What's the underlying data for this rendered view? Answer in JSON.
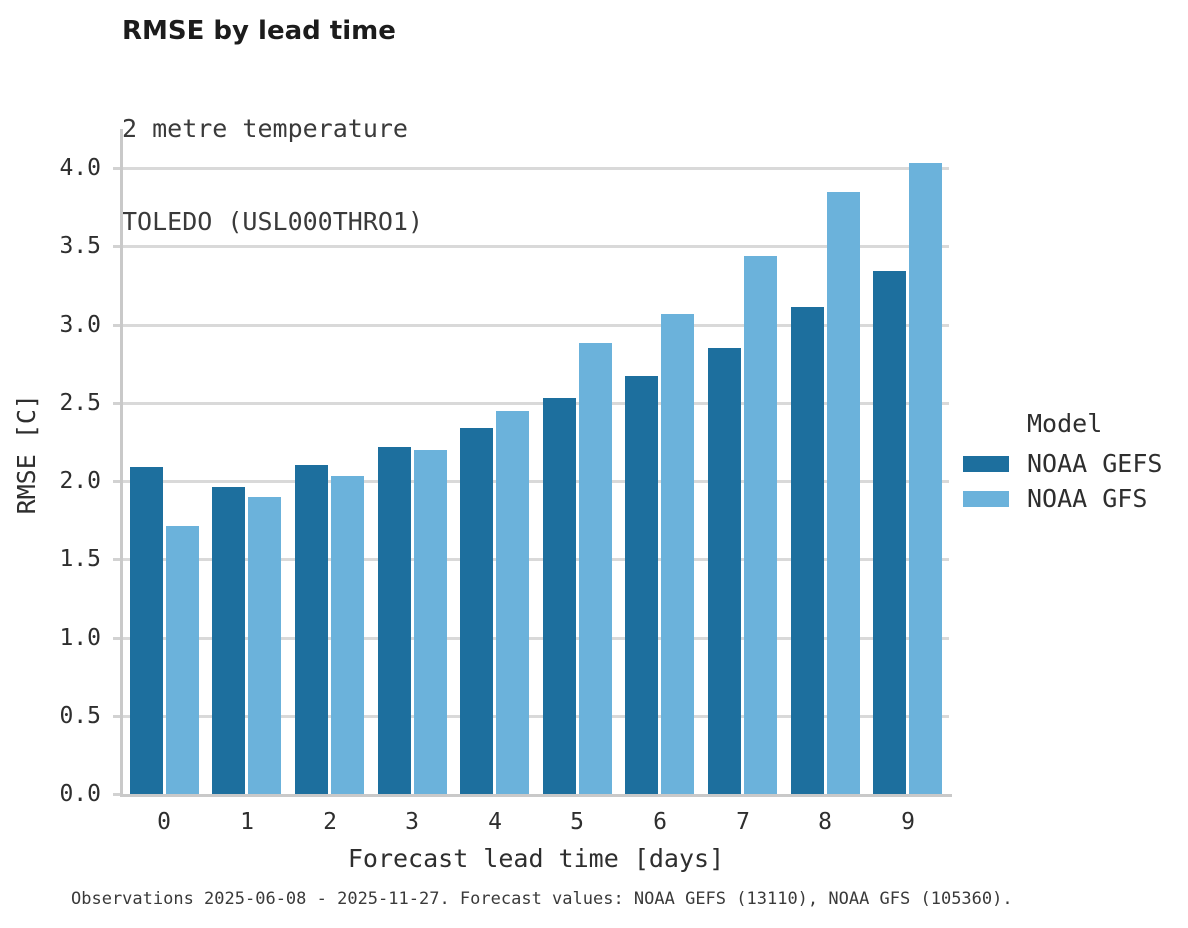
{
  "header": {
    "title": "RMSE by lead time",
    "subtitle_line1": "2 metre temperature",
    "subtitle_line2": "TOLEDO (USL000THRO1)"
  },
  "legend": {
    "title": "Model"
  },
  "footer": {
    "text": "Observations 2025-06-08 - 2025-11-27. Forecast values: NOAA GEFS (13110), NOAA GFS (105360)."
  },
  "colors": {
    "bar_dark": "#1d6f9e",
    "bar_light": "#6bb2db",
    "gridline": "#d9d9d9",
    "axis": "#c9c9c9",
    "text": "#2e2e2e",
    "subtext": "#3a3a3a"
  },
  "chart_data": {
    "type": "bar",
    "title": "RMSE by lead time",
    "subtitle": "2 metre temperature — TOLEDO (USL000THRO1)",
    "xlabel": "Forecast lead time [days]",
    "ylabel": "RMSE [C]",
    "categories": [
      "0",
      "1",
      "2",
      "3",
      "4",
      "5",
      "6",
      "7",
      "8",
      "9"
    ],
    "series": [
      {
        "name": "NOAA GEFS",
        "color": "#1d6f9e",
        "values": [
          2.09,
          1.96,
          2.1,
          2.22,
          2.34,
          2.53,
          2.67,
          2.85,
          3.11,
          3.34
        ]
      },
      {
        "name": "NOAA GFS",
        "color": "#6bb2db",
        "values": [
          1.71,
          1.9,
          2.03,
          2.2,
          2.45,
          2.88,
          3.07,
          3.44,
          3.85,
          4.03
        ]
      }
    ],
    "ylim": [
      0,
      4.25
    ],
    "yticks": [
      "0.0",
      "0.5",
      "1.0",
      "1.5",
      "2.0",
      "2.5",
      "3.0",
      "3.5",
      "4.0"
    ],
    "grid": true,
    "legend_title": "Model",
    "legend_position": "right"
  }
}
